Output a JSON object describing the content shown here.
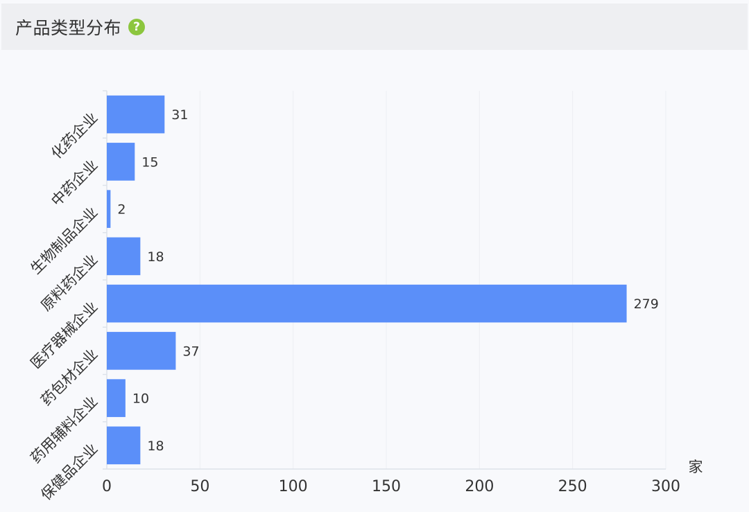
{
  "header": {
    "title": "产品类型分布",
    "help_icon": "question-circle-icon"
  },
  "chart_data": {
    "type": "bar",
    "orientation": "horizontal",
    "categories": [
      "化药企业",
      "中药企业",
      "生物制品企业",
      "原料药企业",
      "医疗器械企业",
      "药包材企业",
      "药用辅料企业",
      "保健品企业"
    ],
    "values": [
      31,
      15,
      2,
      18,
      279,
      37,
      10,
      18
    ],
    "unit_label": "家",
    "xlim": [
      0,
      300
    ],
    "xticks": [
      0,
      50,
      100,
      150,
      200,
      250,
      300
    ],
    "bar_color": "#5b8ff9",
    "grid": true,
    "legend": "none"
  }
}
